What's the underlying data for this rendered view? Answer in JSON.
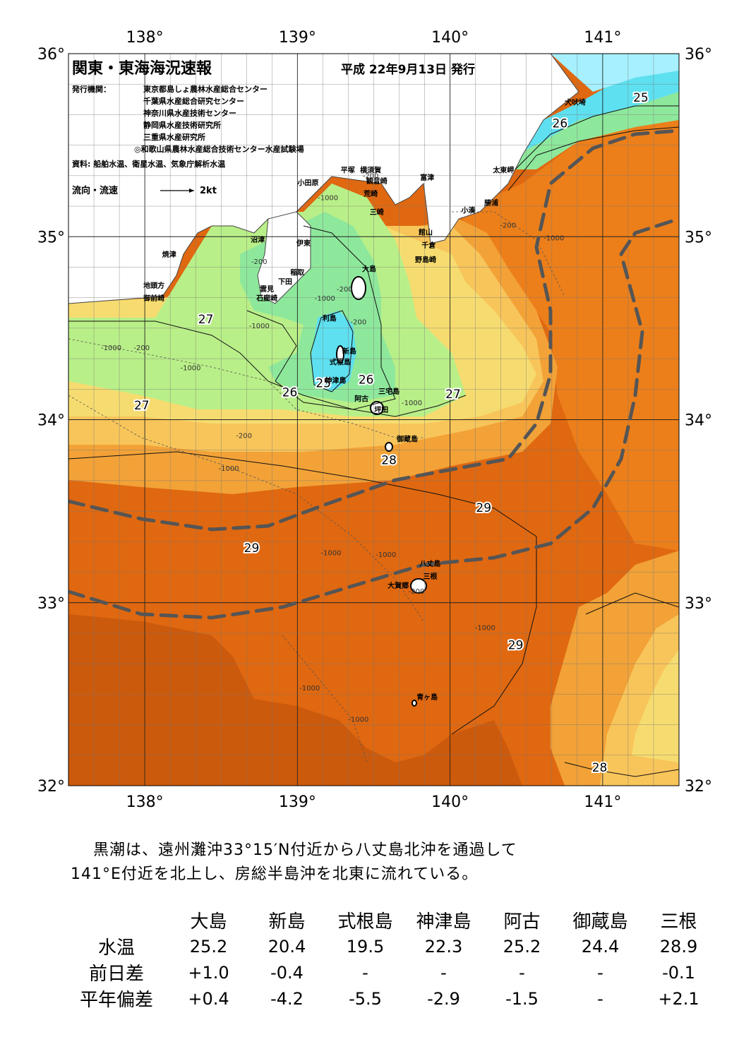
{
  "map": {
    "title": "関東・東海海況速報",
    "issue_date": "平成 22年9月13日 発行",
    "issuer_label": "発行機関：",
    "issuers": [
      "東京都島しょ農林水産総合センター",
      "千葉県水産総合研究センター",
      "神奈川県水産技術センター",
      "静岡県水産技術研究所",
      "三重県水産研究所",
      "◎和歌山県農林水産総合技術センター水産試験場"
    ],
    "source": "資料: 船舶水温、衛星水温、気象庁解析水温",
    "flow_legend_label": "流向・流速",
    "flow_legend_value": "2kt",
    "lon_labels": [
      "138°",
      "139°",
      "140°",
      "141°"
    ],
    "lat_labels": [
      "36°",
      "35°",
      "34°",
      "33°",
      "32°"
    ],
    "colors": {
      "t25": "#5ee0f0",
      "t26": "#8ee89c",
      "t26b": "#b9ef88",
      "t27": "#f6dc70",
      "t27b": "#f8c55a",
      "t28": "#f2a237",
      "t28b": "#ec7f1a",
      "t29": "#e06810",
      "t30": "#cc5a0c",
      "kuroshio_axis": "#555555"
    },
    "places": [
      {
        "name": "犬吠埼",
        "lon": 140.82,
        "lat": 35.72
      },
      {
        "name": "太東岬",
        "lon": 140.35,
        "lat": 35.35
      },
      {
        "name": "勝浦",
        "lon": 140.27,
        "lat": 35.17
      },
      {
        "name": "小湊",
        "lon": 140.12,
        "lat": 35.13
      },
      {
        "name": "富津",
        "lon": 139.85,
        "lat": 35.31
      },
      {
        "name": "横須賀",
        "lon": 139.48,
        "lat": 35.35
      },
      {
        "name": "観音崎",
        "lon": 139.52,
        "lat": 35.29
      },
      {
        "name": "荒崎",
        "lon": 139.48,
        "lat": 35.22
      },
      {
        "name": "三崎",
        "lon": 139.52,
        "lat": 35.12
      },
      {
        "name": "平塚",
        "lon": 139.33,
        "lat": 35.35
      },
      {
        "name": "小田原",
        "lon": 139.07,
        "lat": 35.28
      },
      {
        "name": "館山",
        "lon": 139.84,
        "lat": 35.01
      },
      {
        "name": "千倉",
        "lon": 139.86,
        "lat": 34.94
      },
      {
        "name": "野島崎",
        "lon": 139.84,
        "lat": 34.86
      },
      {
        "name": "沼津",
        "lon": 138.74,
        "lat": 34.97
      },
      {
        "name": "伊東",
        "lon": 139.04,
        "lat": 34.95
      },
      {
        "name": "焼津",
        "lon": 138.16,
        "lat": 34.89
      },
      {
        "name": "大島",
        "lon": 139.47,
        "lat": 34.81
      },
      {
        "name": "稲取",
        "lon": 139.0,
        "lat": 34.79
      },
      {
        "name": "下田",
        "lon": 138.92,
        "lat": 34.74
      },
      {
        "name": "雲見",
        "lon": 138.8,
        "lat": 34.7
      },
      {
        "name": "石廊崎",
        "lon": 138.8,
        "lat": 34.65
      },
      {
        "name": "地頭方",
        "lon": 138.06,
        "lat": 34.72
      },
      {
        "name": "御前崎",
        "lon": 138.06,
        "lat": 34.65
      },
      {
        "name": "利島",
        "lon": 139.21,
        "lat": 34.54
      },
      {
        "name": "新島",
        "lon": 139.34,
        "lat": 34.36
      },
      {
        "name": "式根島",
        "lon": 139.28,
        "lat": 34.3
      },
      {
        "name": "神津島",
        "lon": 139.25,
        "lat": 34.2
      },
      {
        "name": "三宅島",
        "lon": 139.6,
        "lat": 34.14
      },
      {
        "name": "阿古",
        "lon": 139.42,
        "lat": 34.1
      },
      {
        "name": "坪田",
        "lon": 139.55,
        "lat": 34.04
      },
      {
        "name": "御蔵島",
        "lon": 139.72,
        "lat": 33.88
      },
      {
        "name": "八丈島",
        "lon": 139.87,
        "lat": 33.2
      },
      {
        "name": "三根",
        "lon": 139.87,
        "lat": 33.13
      },
      {
        "name": "大賀郷",
        "lon": 139.66,
        "lat": 33.08
      },
      {
        "name": "青ヶ島",
        "lon": 139.85,
        "lat": 32.47
      }
    ],
    "isotherm_labels": [
      {
        "text": "25",
        "lon": 141.25,
        "lat": 35.76
      },
      {
        "text": "26",
        "lon": 140.72,
        "lat": 35.62
      },
      {
        "text": "27",
        "lon": 138.4,
        "lat": 34.55
      },
      {
        "text": "27",
        "lon": 137.98,
        "lat": 34.08
      },
      {
        "text": "26",
        "lon": 138.95,
        "lat": 34.15
      },
      {
        "text": "25",
        "lon": 139.17,
        "lat": 34.2
      },
      {
        "text": "26",
        "lon": 139.45,
        "lat": 34.22
      },
      {
        "text": "27",
        "lon": 140.02,
        "lat": 34.14
      },
      {
        "text": "28",
        "lon": 139.6,
        "lat": 33.78
      },
      {
        "text": "29",
        "lon": 140.22,
        "lat": 33.52
      },
      {
        "text": "29",
        "lon": 138.7,
        "lat": 33.3
      },
      {
        "text": "29",
        "lon": 140.43,
        "lat": 32.77
      },
      {
        "text": "28",
        "lon": 140.98,
        "lat": 32.1
      }
    ],
    "depth_labels": [
      {
        "text": "-200",
        "lon": 139.48,
        "lat": 35.32
      },
      {
        "text": "-1000",
        "lon": 139.2,
        "lat": 35.2
      },
      {
        "text": "-200",
        "lon": 140.38,
        "lat": 35.05
      },
      {
        "text": "-1000",
        "lon": 140.68,
        "lat": 34.98
      },
      {
        "text": "-200",
        "lon": 138.75,
        "lat": 34.85
      },
      {
        "text": "-200",
        "lon": 139.31,
        "lat": 34.7
      },
      {
        "text": "-200",
        "lon": 139.4,
        "lat": 34.52
      },
      {
        "text": "-1000",
        "lon": 138.75,
        "lat": 34.5
      },
      {
        "text": "-1000",
        "lon": 139.18,
        "lat": 34.65
      },
      {
        "text": "-1000",
        "lon": 137.78,
        "lat": 34.38
      },
      {
        "text": "-200",
        "lon": 137.98,
        "lat": 34.38
      },
      {
        "text": "-1000",
        "lon": 138.3,
        "lat": 34.27
      },
      {
        "text": "-1000",
        "lon": 139.75,
        "lat": 34.08
      },
      {
        "text": "-200",
        "lon": 138.65,
        "lat": 33.9
      },
      {
        "text": "-1000",
        "lon": 138.55,
        "lat": 33.72
      },
      {
        "text": "-1000",
        "lon": 139.22,
        "lat": 33.26
      },
      {
        "text": "-1000",
        "lon": 139.58,
        "lat": 33.25
      },
      {
        "text": "-200",
        "lon": 139.78,
        "lat": 33.05
      },
      {
        "text": "-1000",
        "lon": 140.23,
        "lat": 32.85
      },
      {
        "text": "-1000",
        "lon": 139.08,
        "lat": 32.52
      },
      {
        "text": "-1000",
        "lon": 139.4,
        "lat": 32.35
      }
    ]
  },
  "summary": {
    "line1": "黒潮は、遠州灘沖33°15′N付近から八丈島北沖を通過して",
    "line2": "141°E付近を北上し、房総半島沖を北東に流れている。"
  },
  "table": {
    "stations": [
      "大島",
      "新島",
      "式根島",
      "神津島",
      "阿古",
      "御蔵島",
      "三根"
    ],
    "rows": [
      {
        "label": "水温",
        "values": [
          "25.2",
          "20.4",
          "19.5",
          "22.3",
          "25.2",
          "24.4",
          "28.9"
        ]
      },
      {
        "label": "前日差",
        "values": [
          "+1.0",
          "-0.4",
          "-",
          "-",
          "-",
          "-",
          "-0.1"
        ]
      },
      {
        "label": "平年偏差",
        "values": [
          "+0.4",
          "-4.2",
          "-5.5",
          "-2.9",
          "-1.5",
          "-",
          "+2.1"
        ]
      }
    ]
  }
}
